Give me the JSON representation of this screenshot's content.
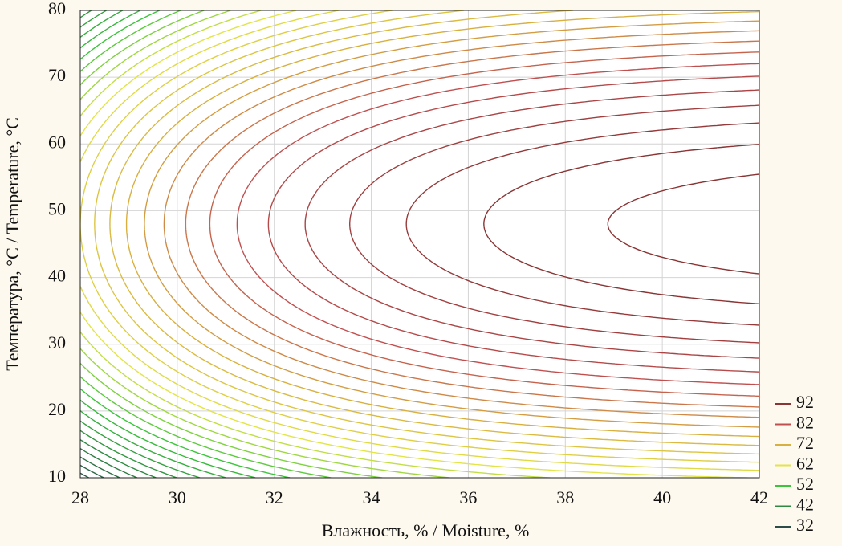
{
  "chart_data": {
    "type": "contour",
    "xlabel": "Влажность, % / Moisture, %",
    "ylabel": "Температура, °C / Temperature, °C",
    "xlim": [
      28,
      42
    ],
    "ylim": [
      10,
      80
    ],
    "xticks": [
      28,
      30,
      32,
      34,
      36,
      38,
      40,
      42
    ],
    "yticks": [
      10,
      20,
      30,
      40,
      50,
      60,
      70,
      80
    ],
    "grid": true,
    "legend": {
      "position": "lower right",
      "levels": [
        {
          "value": 92,
          "color": "#8a3434"
        },
        {
          "value": 82,
          "color": "#c05050"
        },
        {
          "value": 72,
          "color": "#d8b040"
        },
        {
          "value": 62,
          "color": "#e2e448"
        },
        {
          "value": 52,
          "color": "#3cc43c"
        },
        {
          "value": 42,
          "color": "#2e8a40"
        },
        {
          "value": 32,
          "color": "#2c4c48"
        }
      ]
    }
  }
}
